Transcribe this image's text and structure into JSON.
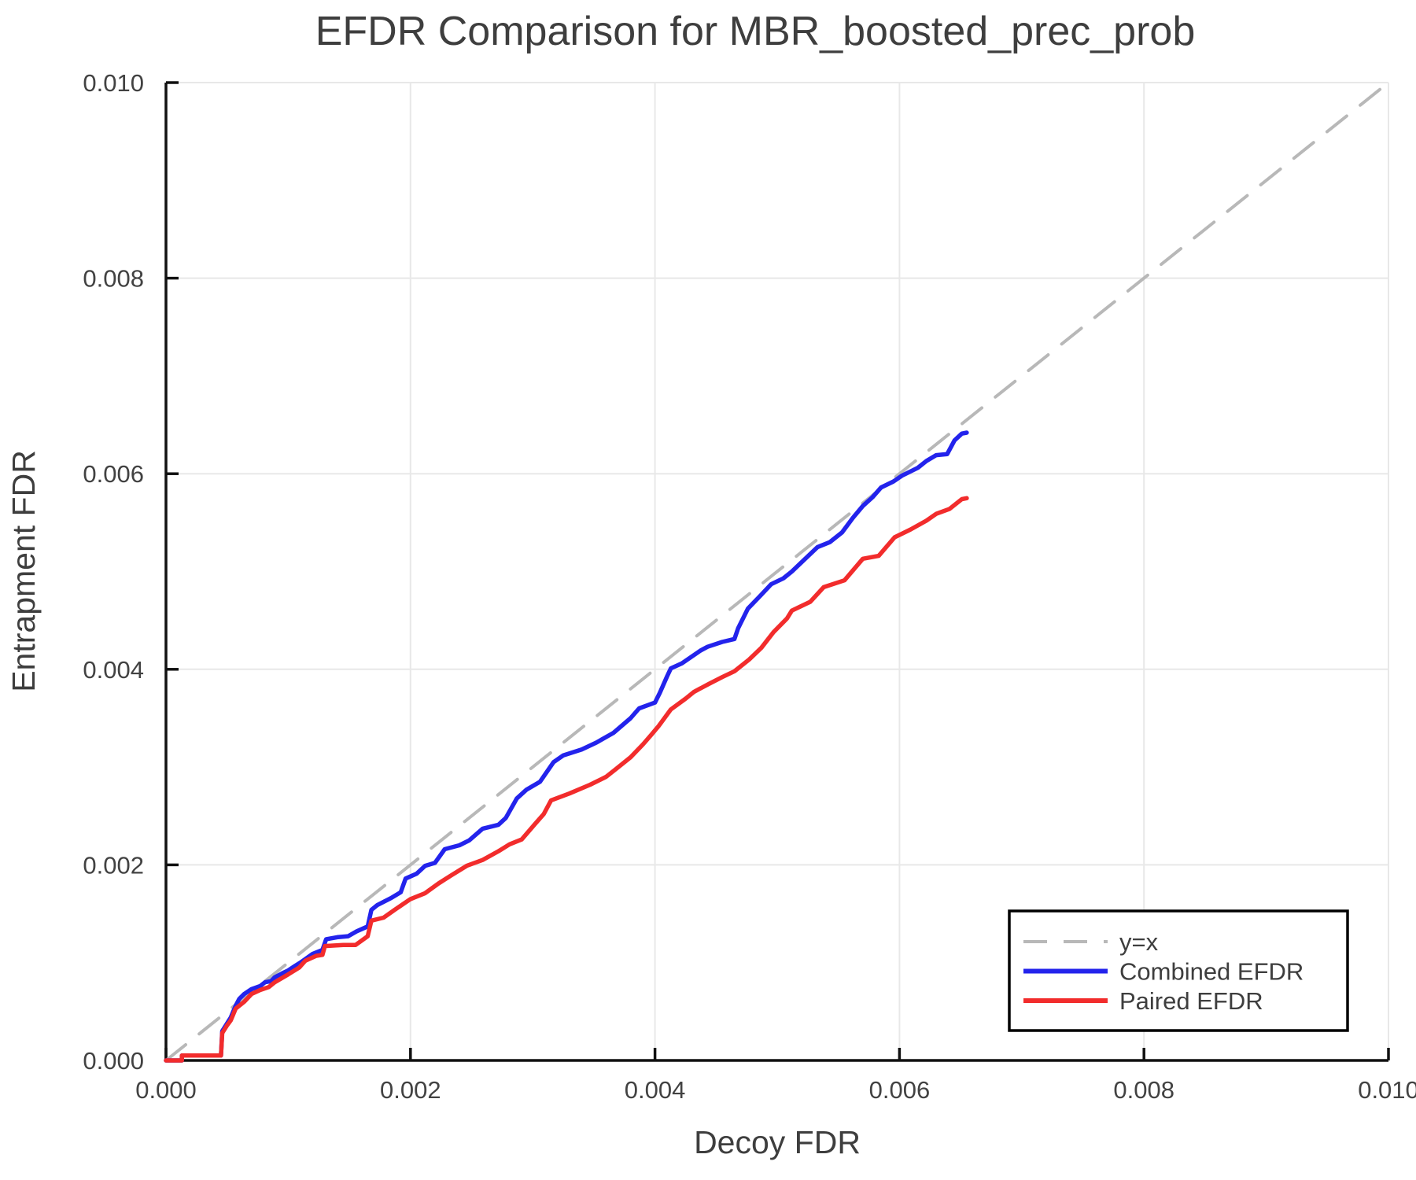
{
  "chart_data": {
    "type": "line",
    "title": "EFDR Comparison for MBR_boosted_prec_prob",
    "xlabel": "Decoy FDR",
    "ylabel": "Entrapment FDR",
    "xlim": [
      0.0,
      0.01
    ],
    "ylim": [
      0.0,
      0.01
    ],
    "xticks": [
      0.0,
      0.002,
      0.004,
      0.006,
      0.008,
      0.01
    ],
    "yticks": [
      0.0,
      0.002,
      0.004,
      0.006,
      0.008,
      0.01
    ],
    "tick_decimals": 3,
    "grid": true,
    "legend_position": "lower right",
    "series": [
      {
        "name": "y=x",
        "style": "dashed",
        "color": "#b8b8b8",
        "points": [
          [
            0.0,
            0.0
          ],
          [
            0.01,
            0.01
          ]
        ]
      },
      {
        "name": "Combined EFDR",
        "style": "solid",
        "color": "#2323ec",
        "points": [
          [
            0.0,
            0.0
          ],
          [
            0.00013,
            0.0
          ],
          [
            0.00013,
            5e-05
          ],
          [
            0.00045,
            5e-05
          ],
          [
            0.00046,
            0.0003
          ],
          [
            0.0005,
            0.00038
          ],
          [
            0.00053,
            0.00044
          ],
          [
            0.00055,
            0.0005
          ],
          [
            0.00057,
            0.00056
          ],
          [
            0.0006,
            0.00063
          ],
          [
            0.00064,
            0.00068
          ],
          [
            0.0007,
            0.00073
          ],
          [
            0.00077,
            0.00076
          ],
          [
            0.00081,
            0.0008
          ],
          [
            0.00086,
            0.00081
          ],
          [
            0.00089,
            0.00085
          ],
          [
            0.00095,
            0.00089
          ],
          [
            0.001,
            0.00092
          ],
          [
            0.00106,
            0.00097
          ],
          [
            0.00111,
            0.00101
          ],
          [
            0.0012,
            0.00109
          ],
          [
            0.00128,
            0.00113
          ],
          [
            0.00131,
            0.00124
          ],
          [
            0.0014,
            0.00126
          ],
          [
            0.00149,
            0.00127
          ],
          [
            0.00156,
            0.00132
          ],
          [
            0.00165,
            0.00137
          ],
          [
            0.00168,
            0.00154
          ],
          [
            0.00173,
            0.00159
          ],
          [
            0.00184,
            0.00166
          ],
          [
            0.00192,
            0.00172
          ],
          [
            0.00196,
            0.00186
          ],
          [
            0.00205,
            0.00191
          ],
          [
            0.00212,
            0.00199
          ],
          [
            0.0022,
            0.00202
          ],
          [
            0.00228,
            0.00216
          ],
          [
            0.0024,
            0.0022
          ],
          [
            0.00248,
            0.00225
          ],
          [
            0.00259,
            0.00237
          ],
          [
            0.00272,
            0.00241
          ],
          [
            0.00278,
            0.00248
          ],
          [
            0.00287,
            0.00268
          ],
          [
            0.00295,
            0.00277
          ],
          [
            0.00306,
            0.00285
          ],
          [
            0.00317,
            0.00305
          ],
          [
            0.00325,
            0.00312
          ],
          [
            0.0034,
            0.00318
          ],
          [
            0.00352,
            0.00325
          ],
          [
            0.00366,
            0.00335
          ],
          [
            0.0038,
            0.0035
          ],
          [
            0.00387,
            0.0036
          ],
          [
            0.004,
            0.00366
          ],
          [
            0.00404,
            0.00376
          ],
          [
            0.0041,
            0.00393
          ],
          [
            0.00413,
            0.00401
          ],
          [
            0.00422,
            0.00406
          ],
          [
            0.00437,
            0.00419
          ],
          [
            0.00443,
            0.00423
          ],
          [
            0.00455,
            0.00428
          ],
          [
            0.00465,
            0.00431
          ],
          [
            0.00468,
            0.00442
          ],
          [
            0.00476,
            0.00462
          ],
          [
            0.00486,
            0.00475
          ],
          [
            0.00495,
            0.00487
          ],
          [
            0.00505,
            0.00493
          ],
          [
            0.00512,
            0.005
          ],
          [
            0.00522,
            0.00512
          ],
          [
            0.00533,
            0.00525
          ],
          [
            0.00543,
            0.0053
          ],
          [
            0.00553,
            0.0054
          ],
          [
            0.00562,
            0.00555
          ],
          [
            0.0057,
            0.00567
          ],
          [
            0.00578,
            0.00576
          ],
          [
            0.00585,
            0.00586
          ],
          [
            0.00595,
            0.00592
          ],
          [
            0.00602,
            0.00598
          ],
          [
            0.00615,
            0.00606
          ],
          [
            0.00622,
            0.00613
          ],
          [
            0.0063,
            0.00619
          ],
          [
            0.00639,
            0.0062
          ],
          [
            0.00645,
            0.00634
          ],
          [
            0.00651,
            0.00641
          ],
          [
            0.00655,
            0.00642
          ]
        ]
      },
      {
        "name": "Paired EFDR",
        "style": "solid",
        "color": "#f22c2c",
        "points": [
          [
            0.0,
            0.0
          ],
          [
            0.00013,
            0.0
          ],
          [
            0.00013,
            5e-05
          ],
          [
            0.00045,
            5e-05
          ],
          [
            0.00046,
            0.00028
          ],
          [
            0.0005,
            0.00036
          ],
          [
            0.00053,
            0.00041
          ],
          [
            0.00057,
            0.00053
          ],
          [
            0.00064,
            0.0006
          ],
          [
            0.0007,
            0.00068
          ],
          [
            0.00077,
            0.00072
          ],
          [
            0.00084,
            0.00075
          ],
          [
            0.00089,
            0.0008
          ],
          [
            0.001,
            0.00088
          ],
          [
            0.00109,
            0.00095
          ],
          [
            0.00114,
            0.00102
          ],
          [
            0.00123,
            0.00107
          ],
          [
            0.00128,
            0.00108
          ],
          [
            0.0013,
            0.00117
          ],
          [
            0.00145,
            0.00118
          ],
          [
            0.00155,
            0.00118
          ],
          [
            0.00165,
            0.00127
          ],
          [
            0.00168,
            0.00143
          ],
          [
            0.00178,
            0.00146
          ],
          [
            0.00187,
            0.00154
          ],
          [
            0.002,
            0.00165
          ],
          [
            0.00212,
            0.00171
          ],
          [
            0.00223,
            0.00181
          ],
          [
            0.00233,
            0.00189
          ],
          [
            0.00246,
            0.00199
          ],
          [
            0.00259,
            0.00205
          ],
          [
            0.00272,
            0.00214
          ],
          [
            0.00281,
            0.00221
          ],
          [
            0.00291,
            0.00226
          ],
          [
            0.00302,
            0.00242
          ],
          [
            0.00309,
            0.00252
          ],
          [
            0.00315,
            0.00266
          ],
          [
            0.0033,
            0.00273
          ],
          [
            0.00347,
            0.00282
          ],
          [
            0.0036,
            0.0029
          ],
          [
            0.00368,
            0.00298
          ],
          [
            0.0038,
            0.0031
          ],
          [
            0.0039,
            0.00323
          ],
          [
            0.00397,
            0.00333
          ],
          [
            0.00403,
            0.00342
          ],
          [
            0.00413,
            0.00359
          ],
          [
            0.00425,
            0.0037
          ],
          [
            0.00432,
            0.00377
          ],
          [
            0.00444,
            0.00385
          ],
          [
            0.00455,
            0.00392
          ],
          [
            0.00465,
            0.00398
          ],
          [
            0.00477,
            0.0041
          ],
          [
            0.00487,
            0.00422
          ],
          [
            0.00497,
            0.00438
          ],
          [
            0.00508,
            0.00452
          ],
          [
            0.00512,
            0.0046
          ],
          [
            0.00527,
            0.00469
          ],
          [
            0.00538,
            0.00484
          ],
          [
            0.00555,
            0.00491
          ],
          [
            0.0057,
            0.00513
          ],
          [
            0.00583,
            0.00516
          ],
          [
            0.00596,
            0.00535
          ],
          [
            0.00609,
            0.00543
          ],
          [
            0.00622,
            0.00552
          ],
          [
            0.0063,
            0.00559
          ],
          [
            0.00641,
            0.00564
          ],
          [
            0.00651,
            0.00574
          ],
          [
            0.00655,
            0.00575
          ]
        ]
      }
    ]
  }
}
